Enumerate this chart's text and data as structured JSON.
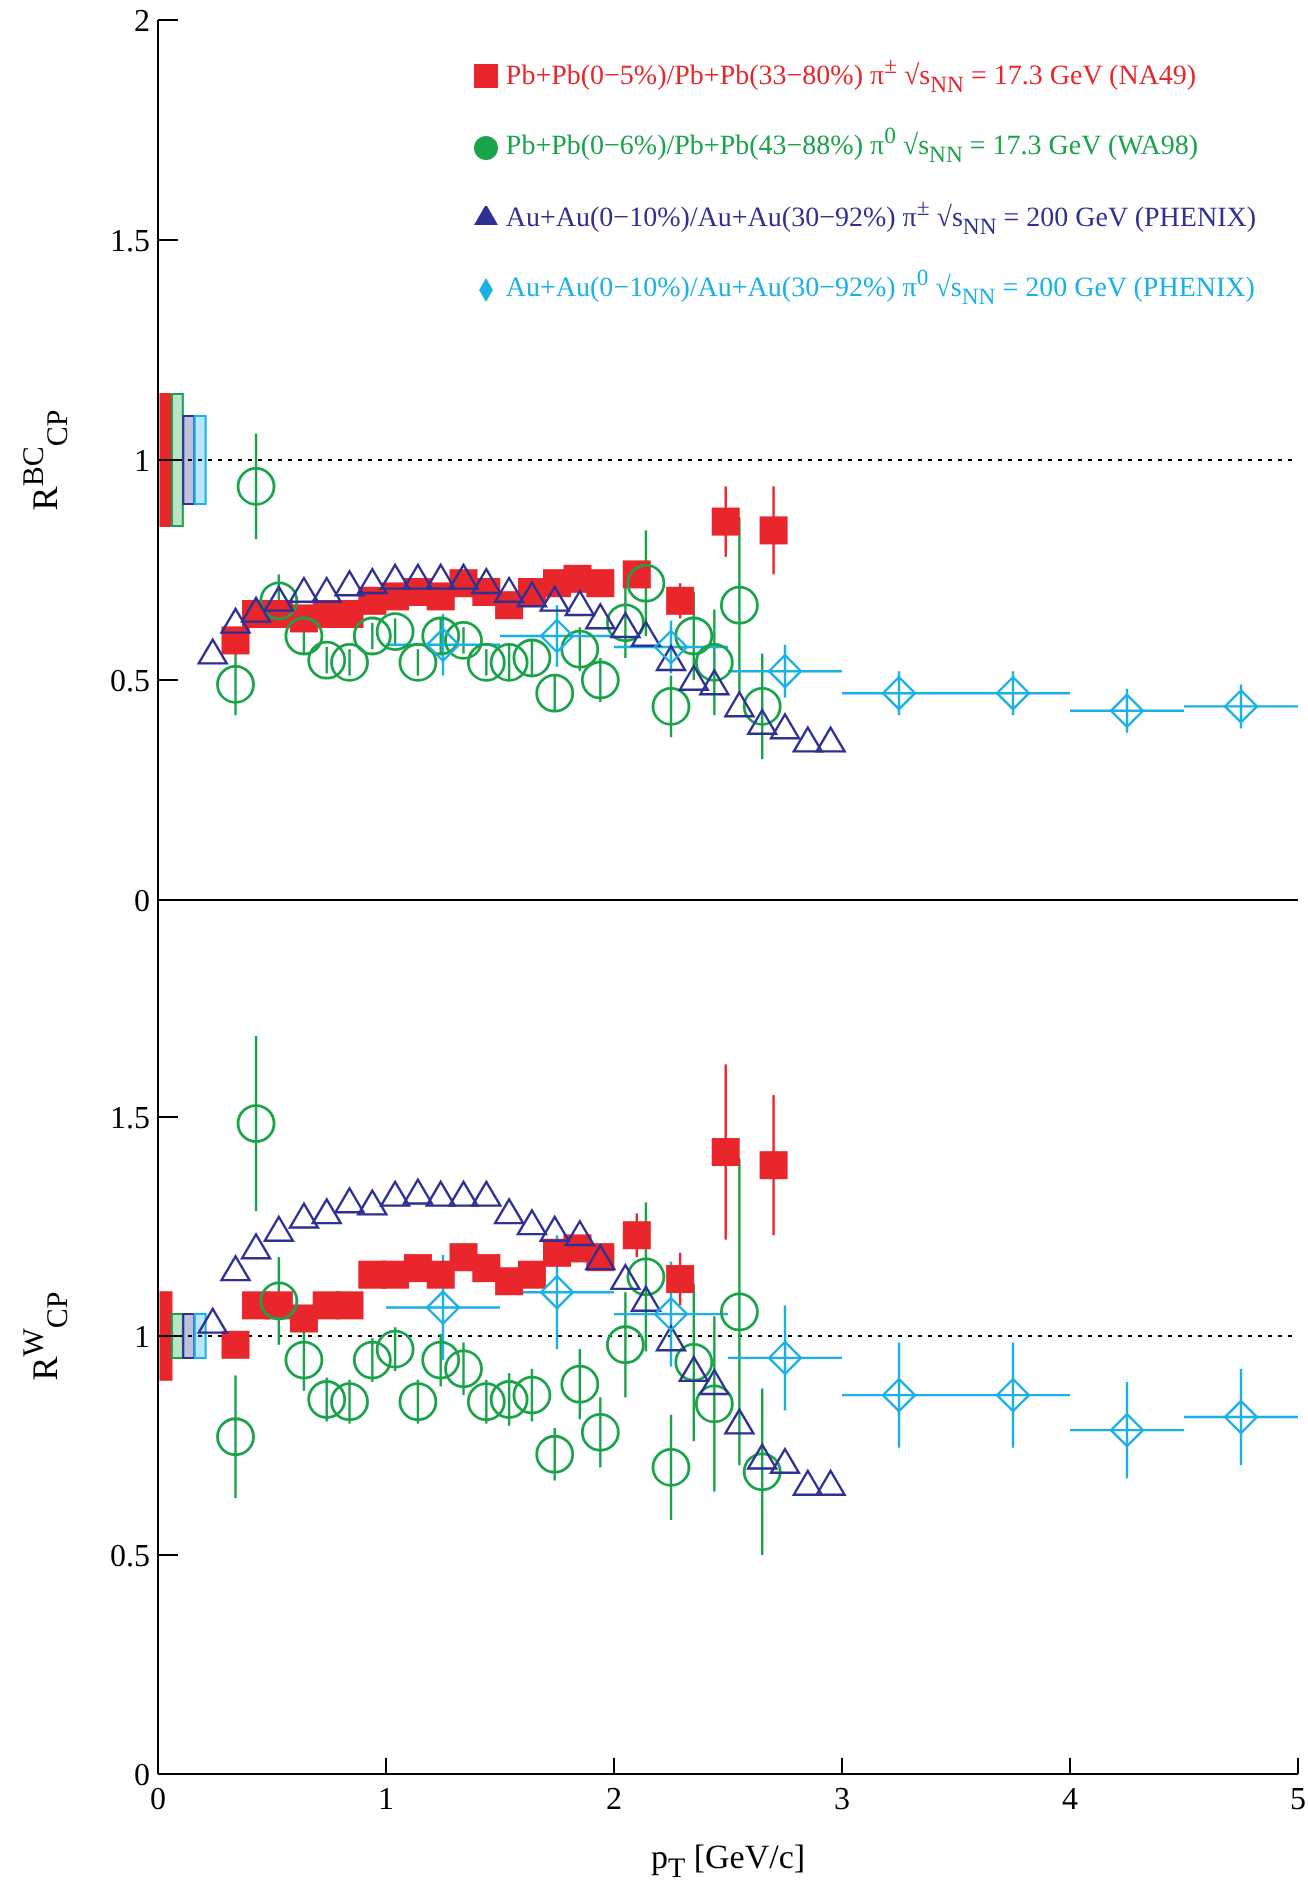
{
  "chart_data": [
    {
      "type": "scatter",
      "ylabel": "R$^{BC}$$_{CP}$",
      "xlim": [
        0,
        5
      ],
      "xticks": [
        0,
        1,
        2,
        3,
        4,
        5
      ],
      "ylim": [
        0,
        2
      ],
      "yticks": [
        0,
        0.5,
        1,
        1.5,
        2
      ],
      "tick_labels": "y",
      "legend": "top right",
      "ref_lines": [
        {
          "axis": "y",
          "value": 1,
          "line_style": "dotted",
          "color": "#000000"
        }
      ],
      "series": [
        {
          "type": "bar",
          "x": [
            0.035,
            0.085,
            0.135,
            0.185
          ],
          "base": [
            0.85,
            0.85,
            0.9,
            0.9
          ],
          "values": [
            0.3,
            0.3,
            0.2,
            0.2
          ],
          "colors": [
            "#e8262b",
            "#1aa34a",
            "#2e3192",
            "#1ab0e8"
          ]
        },
        {
          "name": "Pb+Pb(0−5%)/Pb+Pb(33−80%) π$^{±}$ √s$_{NN}$ = 17.3 GeV (NA49)",
          "color": "#e8262b",
          "marker": "square",
          "x": [
            0.34,
            0.43,
            0.53,
            0.64,
            0.74,
            0.84,
            0.94,
            1.04,
            1.14,
            1.24,
            1.34,
            1.44,
            1.54,
            1.64,
            1.75,
            1.84,
            1.94,
            2.1,
            2.29,
            2.49,
            2.7
          ],
          "values": [
            0.59,
            0.65,
            0.65,
            0.64,
            0.65,
            0.65,
            0.68,
            0.69,
            0.7,
            0.69,
            0.72,
            0.7,
            0.67,
            0.7,
            0.72,
            0.73,
            0.72,
            0.74,
            0.68,
            0.86,
            0.84
          ],
          "errors": [
            0.02,
            0.02,
            0.02,
            0.02,
            0.02,
            0.02,
            0.02,
            0.02,
            0.02,
            0.02,
            0.02,
            0.02,
            0.02,
            0.02,
            0.02,
            0.02,
            0.02,
            0.03,
            0.04,
            0.08,
            0.1
          ],
          "xerrors": [
            0.05,
            0.05,
            0.05,
            0.05,
            0.05,
            0.05,
            0.05,
            0.05,
            0.05,
            0.05,
            0.05,
            0.05,
            0.05,
            0.05,
            0.05,
            0.05,
            0.05,
            0.05,
            0.05,
            0.05,
            0.05
          ]
        },
        {
          "name": "Pb+Pb(0−6%)/Pb+Pb(43−88%) π$^{0}$ √s$_{NN}$ = 17.3 GeV (WA98)",
          "color": "#1aa34a",
          "marker": "circle",
          "x": [
            0.34,
            0.43,
            0.53,
            0.64,
            0.74,
            0.84,
            0.94,
            1.04,
            1.14,
            1.24,
            1.34,
            1.44,
            1.54,
            1.64,
            1.74,
            1.85,
            1.94,
            2.05,
            2.14,
            2.25,
            2.35,
            2.44,
            2.55,
            2.65
          ],
          "values": [
            0.49,
            0.94,
            0.68,
            0.6,
            0.545,
            0.54,
            0.6,
            0.61,
            0.54,
            0.6,
            0.59,
            0.54,
            0.54,
            0.55,
            0.47,
            0.57,
            0.5,
            0.63,
            0.72,
            0.44,
            0.6,
            0.54,
            0.67,
            0.44
          ],
          "errors": [
            0.07,
            0.12,
            0.06,
            0.04,
            0.03,
            0.03,
            0.03,
            0.03,
            0.03,
            0.04,
            0.03,
            0.03,
            0.04,
            0.04,
            0.04,
            0.05,
            0.05,
            0.08,
            0.12,
            0.07,
            0.1,
            0.12,
            0.2,
            0.12
          ]
        },
        {
          "name": "Au+Au(0−10%)/Au+Au(30−92%) π$^{±}$ √s$_{NN}$ = 200 GeV (PHENIX)",
          "color": "#2e3192",
          "marker": "triangle",
          "x": [
            0.24,
            0.34,
            0.43,
            0.53,
            0.64,
            0.74,
            0.84,
            0.94,
            1.04,
            1.14,
            1.24,
            1.34,
            1.44,
            1.54,
            1.64,
            1.74,
            1.85,
            1.94,
            2.05,
            2.14,
            2.25,
            2.35,
            2.44,
            2.55,
            2.65,
            2.75,
            2.85,
            2.95
          ],
          "values": [
            0.56,
            0.63,
            0.655,
            0.68,
            0.7,
            0.7,
            0.715,
            0.72,
            0.73,
            0.73,
            0.73,
            0.73,
            0.72,
            0.7,
            0.69,
            0.68,
            0.67,
            0.64,
            0.62,
            0.6,
            0.545,
            0.5,
            0.49,
            0.44,
            0.4,
            0.39,
            0.36,
            0.36
          ]
        },
        {
          "name": "Au+Au(0−10%)/Au+Au(30−92%) π$^{0}$ √s$_{NN}$ = 200 GeV (PHENIX)",
          "color": "#1ab0e8",
          "marker": "diamond",
          "x": [
            1.25,
            1.75,
            2.25,
            2.75,
            3.25,
            3.75,
            4.25,
            4.75
          ],
          "values": [
            0.58,
            0.6,
            0.575,
            0.52,
            0.47,
            0.47,
            0.43,
            0.44
          ],
          "errors": [
            0.07,
            0.07,
            0.06,
            0.06,
            0.05,
            0.05,
            0.05,
            0.05
          ],
          "xerrors": [
            0.25,
            0.25,
            0.25,
            0.25,
            0.25,
            0.25,
            0.25,
            0.25
          ]
        }
      ]
    },
    {
      "type": "scatter",
      "ylabel": "R$^{W}$$_{CP}$",
      "xlabel": "p$_{T}$ [GeV/c]",
      "xlim": [
        0,
        5
      ],
      "xticks": [
        0,
        1,
        2,
        3,
        4,
        5
      ],
      "ylim": [
        0,
        2
      ],
      "yticks": [
        0,
        0.5,
        1,
        1.5
      ],
      "ref_lines": [
        {
          "axis": "y",
          "value": 1,
          "line_style": "dotted",
          "color": "#000000"
        }
      ],
      "series": [
        {
          "type": "bar",
          "x": [
            0.035,
            0.085,
            0.135,
            0.185
          ],
          "base": [
            0.9,
            0.95,
            0.95,
            0.95
          ],
          "values": [
            0.2,
            0.1,
            0.1,
            0.1
          ],
          "colors": [
            "#e8262b",
            "#1aa34a",
            "#2e3192",
            "#1ab0e8"
          ]
        },
        {
          "color": "#e8262b",
          "marker": "square",
          "x": [
            0.34,
            0.43,
            0.53,
            0.64,
            0.74,
            0.84,
            0.94,
            1.04,
            1.14,
            1.24,
            1.34,
            1.44,
            1.54,
            1.64,
            1.75,
            1.84,
            1.94,
            2.1,
            2.29,
            2.49,
            2.7
          ],
          "values": [
            0.98,
            1.07,
            1.07,
            1.04,
            1.07,
            1.07,
            1.14,
            1.14,
            1.155,
            1.14,
            1.18,
            1.155,
            1.125,
            1.14,
            1.19,
            1.2,
            1.18,
            1.23,
            1.13,
            1.42,
            1.39
          ],
          "errors": [
            0.03,
            0.03,
            0.03,
            0.03,
            0.03,
            0.03,
            0.03,
            0.03,
            0.03,
            0.03,
            0.03,
            0.03,
            0.03,
            0.03,
            0.03,
            0.03,
            0.03,
            0.05,
            0.06,
            0.2,
            0.16
          ],
          "xerrors": [
            0.05,
            0.05,
            0.05,
            0.05,
            0.05,
            0.05,
            0.05,
            0.05,
            0.05,
            0.05,
            0.05,
            0.05,
            0.05,
            0.05,
            0.05,
            0.05,
            0.05,
            0.05,
            0.05,
            0.05,
            0.05
          ]
        },
        {
          "color": "#1aa34a",
          "marker": "circle",
          "x": [
            0.34,
            0.43,
            0.53,
            0.64,
            0.74,
            0.84,
            0.94,
            1.04,
            1.14,
            1.24,
            1.34,
            1.44,
            1.54,
            1.64,
            1.74,
            1.85,
            1.94,
            2.05,
            2.14,
            2.25,
            2.35,
            2.44,
            2.55,
            2.65
          ],
          "values": [
            0.77,
            1.485,
            1.08,
            0.945,
            0.855,
            0.85,
            0.945,
            0.97,
            0.85,
            0.945,
            0.925,
            0.85,
            0.855,
            0.865,
            0.73,
            0.89,
            0.78,
            0.98,
            1.135,
            0.7,
            0.94,
            0.845,
            1.055,
            0.69
          ],
          "errors": [
            0.14,
            0.2,
            0.1,
            0.07,
            0.05,
            0.05,
            0.05,
            0.05,
            0.05,
            0.06,
            0.06,
            0.05,
            0.06,
            0.06,
            0.06,
            0.08,
            0.08,
            0.12,
            0.17,
            0.12,
            0.18,
            0.2,
            0.35,
            0.19
          ]
        },
        {
          "color": "#2e3192",
          "marker": "triangle",
          "x": [
            0.24,
            0.34,
            0.43,
            0.53,
            0.64,
            0.74,
            0.84,
            0.94,
            1.04,
            1.14,
            1.24,
            1.34,
            1.44,
            1.54,
            1.64,
            1.74,
            1.85,
            1.94,
            2.05,
            2.14,
            2.25,
            2.35,
            2.44,
            2.55,
            2.65,
            2.75,
            2.85,
            2.95
          ],
          "values": [
            1.03,
            1.15,
            1.2,
            1.24,
            1.27,
            1.28,
            1.305,
            1.3,
            1.32,
            1.325,
            1.32,
            1.32,
            1.32,
            1.28,
            1.255,
            1.24,
            1.23,
            1.175,
            1.13,
            1.08,
            0.99,
            0.92,
            0.89,
            0.8,
            0.72,
            0.71,
            0.66,
            0.66
          ]
        },
        {
          "color": "#1ab0e8",
          "marker": "diamond",
          "x": [
            1.25,
            1.75,
            2.25,
            2.75,
            3.25,
            3.75,
            4.25,
            4.75
          ],
          "values": [
            1.065,
            1.1,
            1.05,
            0.95,
            0.865,
            0.865,
            0.785,
            0.815
          ],
          "errors": [
            0.12,
            0.13,
            0.12,
            0.12,
            0.12,
            0.12,
            0.11,
            0.11
          ],
          "xerrors": [
            0.25,
            0.25,
            0.25,
            0.25,
            0.25,
            0.25,
            0.25,
            0.25
          ]
        }
      ]
    }
  ]
}
